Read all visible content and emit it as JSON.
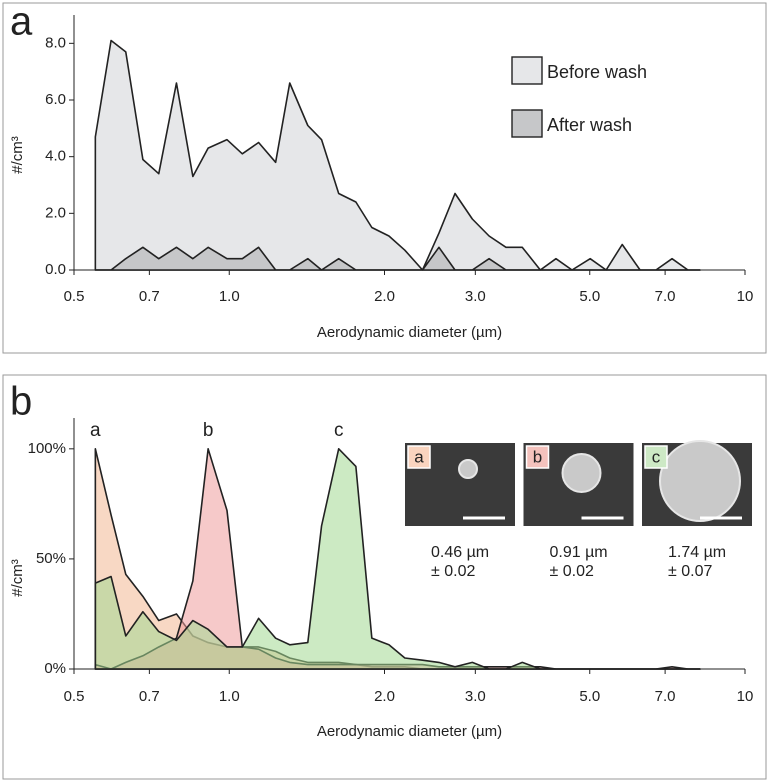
{
  "chart_data": [
    {
      "type": "area",
      "panel_label": "a",
      "xlabel": "Aerodynamic diameter (µm)",
      "ylabel": "#/cm³",
      "xscale": "log",
      "xlim": [
        0.5,
        10
      ],
      "ylim": [
        0,
        9
      ],
      "xticks": [
        0.5,
        0.7,
        {
          "value": 1,
          "label": "1.0"
        },
        {
          "value": 2,
          "label": "2.0"
        },
        {
          "value": 3,
          "label": "3.0"
        },
        {
          "value": 5,
          "label": "5.0"
        },
        {
          "value": 7,
          "label": "7.0"
        },
        10
      ],
      "yticks": [
        {
          "value": 0,
          "label": "0.0"
        },
        {
          "value": 2,
          "label": "2.0"
        },
        {
          "value": 4,
          "label": "4.0"
        },
        {
          "value": 6,
          "label": "6.0"
        },
        {
          "value": 8,
          "label": "8.0"
        }
      ],
      "grid": false,
      "legend": "upper right",
      "x": [
        0.55,
        0.59,
        0.63,
        0.68,
        0.73,
        0.79,
        0.85,
        0.91,
        0.99,
        1.06,
        1.14,
        1.23,
        1.31,
        1.42,
        1.51,
        1.63,
        1.76,
        1.89,
        2.04,
        2.19,
        2.37,
        2.55,
        2.74,
        2.96,
        3.19,
        3.44,
        3.7,
        4.01,
        4.3,
        4.62,
        5.01,
        5.38,
        5.78,
        6.26,
        6.72,
        7.22,
        7.75,
        8.18
      ],
      "series": [
        {
          "name": "Before wash",
          "color": "#e6e7e9",
          "values": [
            4.7,
            8.1,
            7.7,
            3.9,
            3.4,
            6.6,
            3.3,
            4.3,
            4.6,
            4.1,
            4.5,
            3.8,
            6.6,
            5.1,
            4.6,
            2.7,
            2.4,
            1.5,
            1.2,
            0.7,
            0.0,
            1.3,
            2.7,
            1.8,
            1.2,
            0.8,
            0.8,
            0.0,
            0.4,
            0.0,
            0.4,
            0.0,
            0.9,
            0.0,
            0.0,
            0.4,
            0.0,
            0.0
          ]
        },
        {
          "name": "After wash",
          "color": "#c6c7c9",
          "values": [
            0,
            0,
            0.4,
            0.8,
            0.4,
            0.8,
            0.4,
            0.8,
            0.4,
            0.4,
            0.8,
            0,
            0,
            0.4,
            0,
            0.4,
            0,
            0,
            0,
            0,
            0,
            0.8,
            0,
            0,
            0.4,
            0,
            0,
            0,
            0,
            0,
            0,
            0,
            0,
            0,
            0,
            0,
            0,
            0
          ]
        }
      ]
    },
    {
      "type": "area",
      "panel_label": "b",
      "xlabel": "Aerodynamic diameter (µm)",
      "ylabel": "#/cm³",
      "xscale": "log",
      "xlim": [
        0.5,
        10
      ],
      "ylim": [
        0,
        114
      ],
      "xticks": [
        0.5,
        0.7,
        {
          "value": 1,
          "label": "1.0"
        },
        {
          "value": 2,
          "label": "2.0"
        },
        {
          "value": 3,
          "label": "3.0"
        },
        {
          "value": 5,
          "label": "5.0"
        },
        {
          "value": 7,
          "label": "7.0"
        },
        10
      ],
      "yticks": [
        {
          "value": 0,
          "label": "0%"
        },
        {
          "value": 50,
          "label": "50%"
        },
        {
          "value": 100,
          "label": "100%"
        }
      ],
      "grid": false,
      "legend": "at peaks",
      "x": [
        0.55,
        0.59,
        0.63,
        0.68,
        0.73,
        0.79,
        0.85,
        0.91,
        0.99,
        1.06,
        1.14,
        1.23,
        1.31,
        1.42,
        1.51,
        1.63,
        1.76,
        1.89,
        2.04,
        2.19,
        2.37,
        2.55,
        2.74,
        2.96,
        3.19,
        3.44,
        3.7,
        4.01,
        4.3,
        4.62,
        5.01,
        5.38,
        5.78,
        6.26,
        6.72,
        7.22,
        7.75,
        8.18
      ],
      "series": [
        {
          "name": "a",
          "color": "#f2b894",
          "values": [
            100,
            70,
            43,
            33,
            22,
            25,
            15,
            12,
            10,
            10,
            10,
            8,
            5,
            3,
            3,
            3,
            2,
            1,
            1,
            1,
            0,
            0,
            0,
            0,
            0,
            0,
            0,
            0,
            0,
            0,
            0,
            0,
            0,
            0,
            0,
            0,
            0,
            0
          ]
        },
        {
          "name": "b",
          "color": "#ee9c9c",
          "values": [
            2,
            0,
            3,
            6,
            10,
            14,
            40,
            100,
            72,
            10,
            9,
            5,
            3,
            2,
            2,
            2,
            2,
            2,
            2,
            2,
            2,
            1,
            1,
            1,
            1,
            1,
            1,
            1,
            0,
            0,
            0,
            0,
            0,
            0,
            0,
            1,
            0,
            0
          ]
        },
        {
          "name": "c",
          "color": "#a3d892",
          "values": [
            39,
            42,
            15,
            26,
            17,
            13,
            22,
            18,
            10,
            10,
            23,
            14,
            11,
            12,
            65,
            100,
            92,
            14,
            11,
            5,
            4,
            3,
            1,
            3,
            0,
            0,
            3,
            0,
            0,
            0,
            0,
            0,
            0,
            0,
            0,
            0,
            0,
            0
          ]
        }
      ],
      "insets": [
        {
          "label": "a",
          "color": "#f9d4bf",
          "size": "0.46 µm",
          "error": "± 0.02"
        },
        {
          "label": "b",
          "color": "#f4c2bd",
          "size": "0.91 µm",
          "error": "± 0.02"
        },
        {
          "label": "c",
          "color": "#cde9c5",
          "size": "1.74 µm",
          "error": "± 0.07"
        }
      ]
    }
  ]
}
